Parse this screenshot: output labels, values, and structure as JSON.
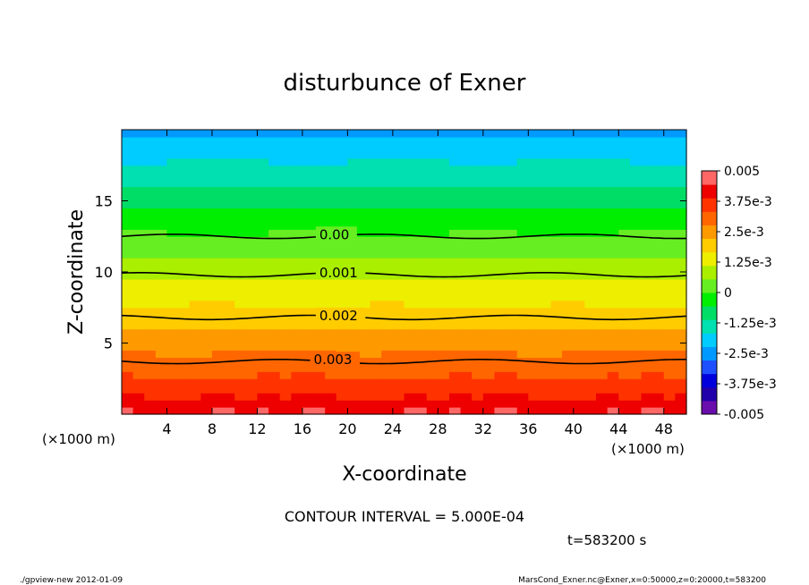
{
  "chart_data": {
    "type": "heatmap",
    "title": "disturbunce of Exner",
    "xlabel": "X-coordinate",
    "ylabel": "Z-coordinate",
    "x_unit_left": "(×1000 m)",
    "x_unit_right": "(×1000 m)",
    "xlim": [
      0,
      50
    ],
    "ylim": [
      0,
      20
    ],
    "x_ticks": [
      4,
      8,
      12,
      16,
      20,
      24,
      28,
      32,
      36,
      40,
      44,
      48
    ],
    "y_ticks": [
      5,
      10,
      15
    ],
    "contour_labels": [
      {
        "text": "0.00",
        "x": 17.5,
        "z": 12.5
      },
      {
        "text": "0.001",
        "x": 17.5,
        "z": 9.8
      },
      {
        "text": "0.002",
        "x": 17.5,
        "z": 6.8
      },
      {
        "text": "0.003",
        "x": 17.0,
        "z": 3.7
      }
    ],
    "colorbar": {
      "labels": [
        "0.005",
        "3.75e-3",
        "2.5e-3",
        "1.25e-3",
        "0",
        "-1.25e-3",
        "-2.5e-3",
        "-3.75e-3",
        "-0.005"
      ],
      "min": -0.005,
      "max": 0.005
    },
    "contour_interval_text": "CONTOUR INTERVAL = 5.000E-04",
    "time_text": "t=583200 s"
  },
  "footer": {
    "left": "./gpview-new   2012-01-09",
    "right": "MarsCond_Exner.nc@Exner,x=0:50000,z=0:20000,t=583200"
  }
}
